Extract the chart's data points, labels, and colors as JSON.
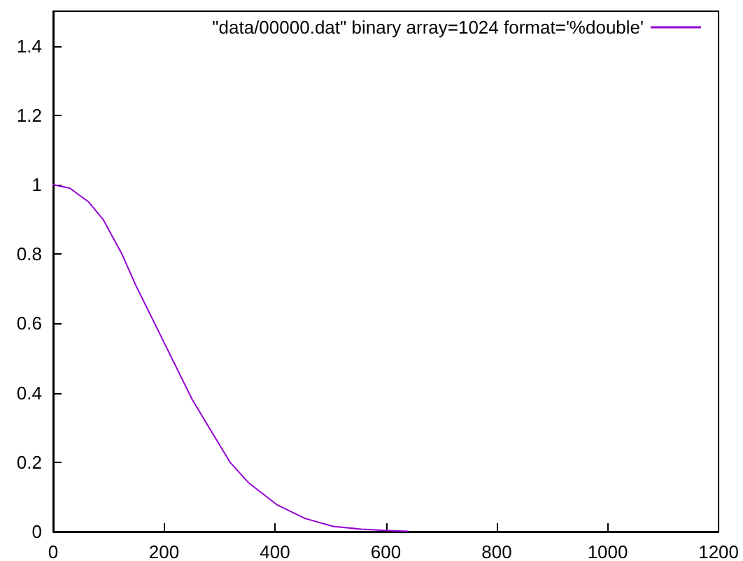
{
  "chart_data": {
    "type": "line",
    "x": [
      0,
      30,
      64,
      90,
      124,
      149,
      183,
      217,
      251,
      285,
      319,
      353,
      403,
      454,
      505,
      556,
      603,
      640
    ],
    "series": [
      {
        "name": "\"data/00000.dat\" binary array=1024 format='%double'",
        "color": "#9400d3",
        "values": [
          1.0,
          0.99,
          0.95,
          0.9,
          0.8,
          0.71,
          0.6,
          0.49,
          0.38,
          0.29,
          0.2,
          0.14,
          0.078,
          0.038,
          0.015,
          0.007,
          0.003,
          0.001
        ]
      }
    ],
    "xlim": [
      0,
      1200
    ],
    "xticks": [
      0,
      200,
      400,
      600,
      800,
      1000,
      1200
    ],
    "ylim": [
      0,
      1.5
    ],
    "yticks": [
      0,
      0.2,
      0.4,
      0.6,
      0.8,
      1,
      1.2,
      1.4
    ],
    "grid": false,
    "legend": "top right",
    "marker": "none",
    "line_style": "solid"
  }
}
